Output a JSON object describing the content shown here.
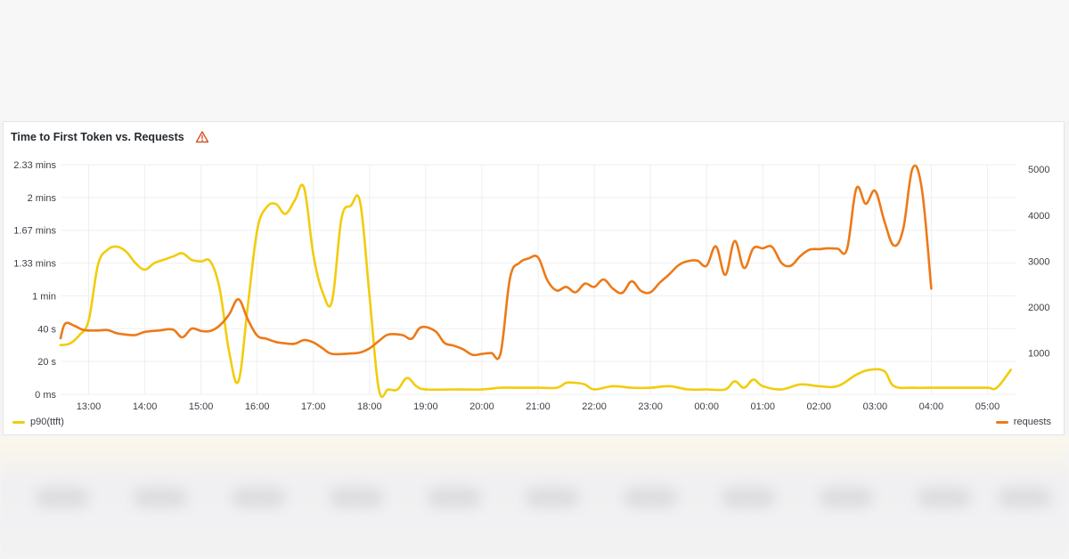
{
  "panel": {
    "title": "Time to First Token vs. Requests",
    "warning_icon": "warning-triangle-icon"
  },
  "colors": {
    "ttft": "#f2cc0c",
    "requests": "#ec7a18",
    "warning": "#d3542a",
    "grid": "#efeff1"
  },
  "chart_data": {
    "type": "line",
    "title": "Time to First Token vs. Requests",
    "x_ticks": [
      "13:00",
      "14:00",
      "15:00",
      "16:00",
      "17:00",
      "18:00",
      "19:00",
      "20:00",
      "21:00",
      "22:00",
      "23:00",
      "00:00",
      "01:00",
      "02:00",
      "03:00",
      "04:00",
      "05:00"
    ],
    "x_range": [
      "12:30",
      "05:30"
    ],
    "y_left": {
      "ticks": [
        "0 ms",
        "20 s",
        "40 s",
        "1 min",
        "1.33 mins",
        "1.67 mins",
        "2 mins",
        "2.33 mins"
      ],
      "range_seconds": [
        0,
        140
      ]
    },
    "y_right": {
      "ticks": [
        "1000",
        "2000",
        "3000",
        "4000",
        "5000"
      ],
      "range": [
        100,
        5100
      ]
    },
    "grid": true,
    "legend_placement": "bottom",
    "series": [
      {
        "name": "p90(ttft)",
        "axis": "left",
        "unit": "seconds",
        "points": [
          [
            "12:30",
            30
          ],
          [
            "12:40",
            31
          ],
          [
            "12:50",
            36
          ],
          [
            "13:00",
            45
          ],
          [
            "13:10",
            79
          ],
          [
            "13:20",
            88
          ],
          [
            "13:30",
            90
          ],
          [
            "13:40",
            87
          ],
          [
            "13:50",
            80
          ],
          [
            "14:00",
            76
          ],
          [
            "14:10",
            80
          ],
          [
            "14:20",
            82
          ],
          [
            "14:30",
            84
          ],
          [
            "14:40",
            86
          ],
          [
            "14:50",
            82
          ],
          [
            "15:00",
            81
          ],
          [
            "15:10",
            81
          ],
          [
            "15:20",
            64
          ],
          [
            "15:30",
            26
          ],
          [
            "15:40",
            8
          ],
          [
            "15:50",
            54
          ],
          [
            "16:00",
            100
          ],
          [
            "16:10",
            114
          ],
          [
            "16:20",
            116
          ],
          [
            "16:30",
            110
          ],
          [
            "16:40",
            118
          ],
          [
            "16:50",
            126
          ],
          [
            "17:00",
            85
          ],
          [
            "17:10",
            62
          ],
          [
            "17:20",
            57
          ],
          [
            "17:30",
            107
          ],
          [
            "17:40",
            115
          ],
          [
            "17:50",
            117
          ],
          [
            "18:00",
            60
          ],
          [
            "18:10",
            3
          ],
          [
            "18:20",
            3
          ],
          [
            "18:30",
            3
          ],
          [
            "18:40",
            10
          ],
          [
            "18:50",
            5
          ],
          [
            "19:00",
            3
          ],
          [
            "19:30",
            3
          ],
          [
            "20:00",
            3
          ],
          [
            "20:20",
            4
          ],
          [
            "20:40",
            4
          ],
          [
            "21:00",
            4
          ],
          [
            "21:20",
            4
          ],
          [
            "21:30",
            7
          ],
          [
            "21:40",
            7
          ],
          [
            "21:50",
            6
          ],
          [
            "22:00",
            3
          ],
          [
            "22:20",
            5
          ],
          [
            "22:40",
            4
          ],
          [
            "23:00",
            4
          ],
          [
            "23:20",
            5
          ],
          [
            "23:40",
            3
          ],
          [
            "00:00",
            3
          ],
          [
            "00:20",
            3
          ],
          [
            "00:30",
            8
          ],
          [
            "00:40",
            4
          ],
          [
            "00:50",
            9
          ],
          [
            "01:00",
            5
          ],
          [
            "01:20",
            3
          ],
          [
            "01:40",
            6
          ],
          [
            "02:00",
            5
          ],
          [
            "02:20",
            5
          ],
          [
            "02:40",
            12
          ],
          [
            "02:55",
            15
          ],
          [
            "03:10",
            14
          ],
          [
            "03:20",
            5
          ],
          [
            "03:40",
            4
          ],
          [
            "04:00",
            4
          ],
          [
            "04:20",
            4
          ],
          [
            "04:40",
            4
          ],
          [
            "05:00",
            4
          ],
          [
            "05:10",
            4
          ],
          [
            "05:25",
            15
          ]
        ]
      },
      {
        "name": "requests",
        "axis": "right",
        "unit": "count",
        "points": [
          [
            "12:30",
            1320
          ],
          [
            "12:35",
            1640
          ],
          [
            "12:45",
            1590
          ],
          [
            "12:55",
            1500
          ],
          [
            "13:10",
            1490
          ],
          [
            "13:20",
            1500
          ],
          [
            "13:30",
            1430
          ],
          [
            "13:40",
            1400
          ],
          [
            "13:50",
            1390
          ],
          [
            "14:00",
            1460
          ],
          [
            "14:15",
            1490
          ],
          [
            "14:30",
            1510
          ],
          [
            "14:40",
            1340
          ],
          [
            "14:50",
            1530
          ],
          [
            "15:00",
            1480
          ],
          [
            "15:10",
            1480
          ],
          [
            "15:20",
            1600
          ],
          [
            "15:30",
            1840
          ],
          [
            "15:40",
            2170
          ],
          [
            "15:50",
            1730
          ],
          [
            "16:00",
            1380
          ],
          [
            "16:10",
            1310
          ],
          [
            "16:20",
            1240
          ],
          [
            "16:30",
            1210
          ],
          [
            "16:40",
            1200
          ],
          [
            "16:50",
            1280
          ],
          [
            "17:00",
            1230
          ],
          [
            "17:10",
            1100
          ],
          [
            "17:20",
            980
          ],
          [
            "17:40",
            990
          ],
          [
            "17:50",
            1010
          ],
          [
            "18:00",
            1100
          ],
          [
            "18:10",
            1260
          ],
          [
            "18:20",
            1400
          ],
          [
            "18:35",
            1390
          ],
          [
            "18:45",
            1310
          ],
          [
            "18:55",
            1560
          ],
          [
            "19:10",
            1480
          ],
          [
            "19:20",
            1220
          ],
          [
            "19:30",
            1160
          ],
          [
            "19:40",
            1080
          ],
          [
            "19:50",
            960
          ],
          [
            "20:00",
            980
          ],
          [
            "20:10",
            1000
          ],
          [
            "20:20",
            1000
          ],
          [
            "20:30",
            2630
          ],
          [
            "20:40",
            2960
          ],
          [
            "20:50",
            3060
          ],
          [
            "21:00",
            3080
          ],
          [
            "21:10",
            2580
          ],
          [
            "21:20",
            2360
          ],
          [
            "21:30",
            2440
          ],
          [
            "21:40",
            2320
          ],
          [
            "21:50",
            2510
          ],
          [
            "22:00",
            2440
          ],
          [
            "22:10",
            2600
          ],
          [
            "22:20",
            2400
          ],
          [
            "22:30",
            2310
          ],
          [
            "22:40",
            2560
          ],
          [
            "22:50",
            2350
          ],
          [
            "23:00",
            2320
          ],
          [
            "23:10",
            2530
          ],
          [
            "23:20",
            2710
          ],
          [
            "23:30",
            2910
          ],
          [
            "23:40",
            3000
          ],
          [
            "23:50",
            3010
          ],
          [
            "00:00",
            2900
          ],
          [
            "00:10",
            3320
          ],
          [
            "00:20",
            2700
          ],
          [
            "00:30",
            3440
          ],
          [
            "00:40",
            2850
          ],
          [
            "00:50",
            3280
          ],
          [
            "01:00",
            3280
          ],
          [
            "01:10",
            3310
          ],
          [
            "01:20",
            2960
          ],
          [
            "01:30",
            2900
          ],
          [
            "01:40",
            3110
          ],
          [
            "01:50",
            3250
          ],
          [
            "02:00",
            3260
          ],
          [
            "02:10",
            3280
          ],
          [
            "02:20",
            3270
          ],
          [
            "02:30",
            3260
          ],
          [
            "02:40",
            4580
          ],
          [
            "02:50",
            4250
          ],
          [
            "03:00",
            4530
          ],
          [
            "03:10",
            3860
          ],
          [
            "03:20",
            3340
          ],
          [
            "03:30",
            3700
          ],
          [
            "03:40",
            5020
          ],
          [
            "03:50",
            4560
          ],
          [
            "04:00",
            2400
          ]
        ]
      }
    ]
  },
  "legend": {
    "left_label": "p90(ttft)",
    "right_label": "requests"
  }
}
